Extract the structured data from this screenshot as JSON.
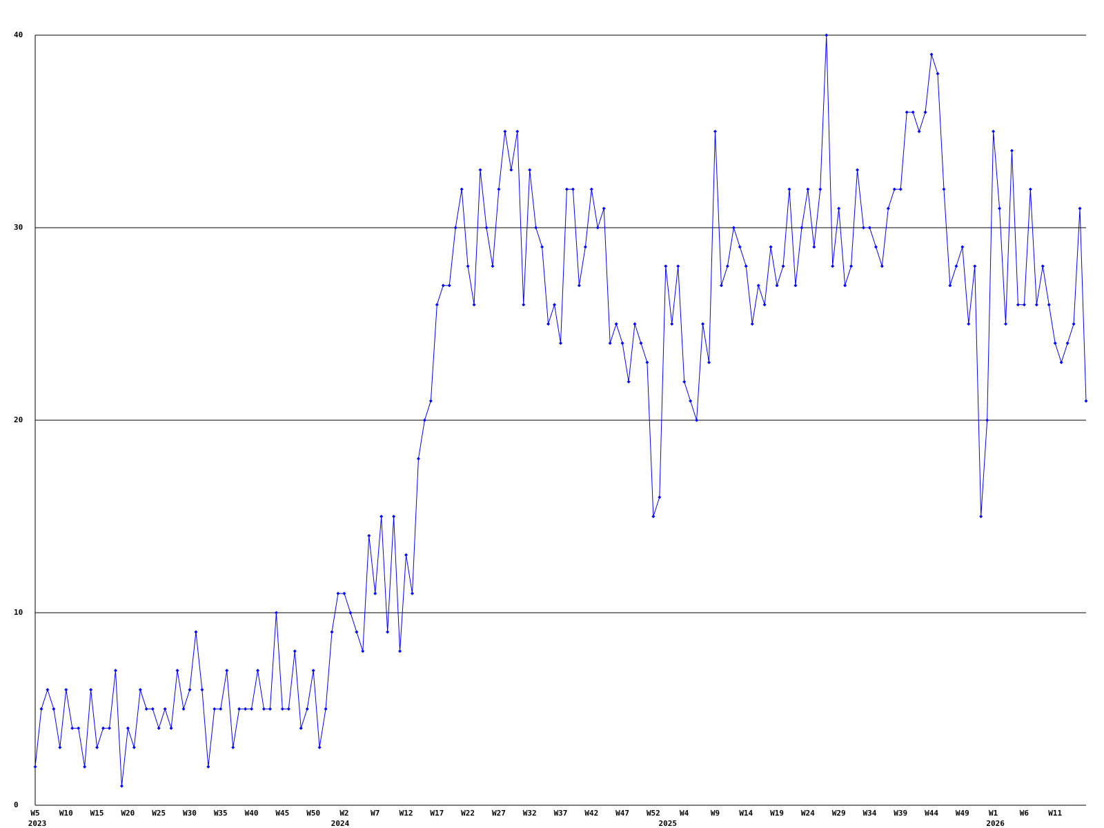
{
  "chart_data": {
    "type": "line",
    "color": "#0000ff",
    "grid": true,
    "ylim": [
      0,
      40
    ],
    "yticks": [
      0,
      10,
      20,
      30,
      40
    ],
    "categories": [
      "W5",
      null,
      null,
      null,
      null,
      "W10",
      null,
      null,
      null,
      null,
      "W15",
      null,
      null,
      null,
      null,
      "W20",
      null,
      null,
      null,
      null,
      "W25",
      null,
      null,
      null,
      null,
      "W30",
      null,
      null,
      null,
      null,
      "W35",
      null,
      null,
      null,
      null,
      "W40",
      null,
      null,
      null,
      null,
      "W45",
      null,
      null,
      null,
      null,
      "W50",
      null,
      null,
      null,
      null,
      "W2",
      null,
      null,
      null,
      null,
      "W7",
      null,
      null,
      null,
      null,
      "W12",
      null,
      null,
      null,
      null,
      "W17",
      null,
      null,
      null,
      null,
      "W22",
      null,
      null,
      null,
      null,
      "W27",
      null,
      null,
      null,
      null,
      "W32",
      null,
      null,
      null,
      null,
      "W37",
      null,
      null,
      null,
      null,
      "W42",
      null,
      null,
      null,
      null,
      "W47",
      null,
      null,
      null,
      null,
      "W52",
      null,
      null,
      null,
      null,
      "W4",
      null,
      null,
      null,
      null,
      "W9",
      null,
      null,
      null,
      null,
      "W14",
      null,
      null,
      null,
      null,
      "W19",
      null,
      null,
      null,
      null,
      "W24",
      null,
      null,
      null,
      null,
      "W29",
      null,
      null,
      null,
      null,
      "W34",
      null,
      null,
      null,
      null,
      "W39",
      null,
      null,
      null,
      null,
      "W44",
      null,
      null,
      null,
      null,
      "W49",
      null,
      null,
      null,
      null,
      "W1",
      null,
      null,
      null,
      null,
      "W6",
      null,
      null,
      null,
      null,
      "W11",
      null,
      null,
      null,
      null,
      null
    ],
    "x_years": [
      "2023",
      null,
      null,
      null,
      null,
      null,
      null,
      null,
      null,
      null,
      null,
      null,
      null,
      null,
      null,
      null,
      null,
      null,
      null,
      null,
      null,
      null,
      null,
      null,
      null,
      null,
      null,
      null,
      null,
      null,
      null,
      null,
      null,
      null,
      null,
      null,
      null,
      null,
      null,
      null,
      null,
      null,
      null,
      null,
      null,
      null,
      null,
      null,
      null,
      "2024",
      null,
      null,
      null,
      null,
      null,
      null,
      null,
      null,
      null,
      null,
      null,
      null,
      null,
      null,
      null,
      null,
      null,
      null,
      null,
      null,
      null,
      null,
      null,
      null,
      null,
      null,
      null,
      null,
      null,
      null,
      null,
      null,
      null,
      null,
      null,
      null,
      null,
      null,
      null,
      null,
      null,
      null,
      null,
      null,
      null,
      null,
      null,
      null,
      null,
      null,
      null,
      null,
      "2025",
      null,
      null,
      null,
      null,
      null,
      null,
      null,
      null,
      null,
      null,
      null,
      null,
      null,
      null,
      null,
      null,
      null,
      null,
      null,
      null,
      null,
      null,
      null,
      null,
      null,
      null,
      null,
      null,
      null,
      null,
      null,
      null,
      null,
      null,
      null,
      null,
      null,
      null,
      null,
      null,
      null,
      null,
      null,
      null,
      null,
      null,
      null,
      null,
      null,
      null,
      null,
      null,
      "2026",
      null,
      null,
      null,
      null,
      null,
      null,
      null,
      null,
      null,
      null,
      null,
      null,
      null,
      null,
      null
    ],
    "values": [
      2,
      5,
      6,
      5,
      3,
      6,
      4,
      4,
      2,
      6,
      3,
      4,
      4,
      7,
      1,
      4,
      3,
      6,
      5,
      5,
      4,
      5,
      4,
      7,
      5,
      6,
      9,
      6,
      2,
      5,
      5,
      7,
      3,
      5,
      5,
      5,
      7,
      5,
      5,
      10,
      5,
      5,
      8,
      4,
      5,
      7,
      3,
      5,
      9,
      11,
      11,
      10,
      9,
      8,
      14,
      11,
      15,
      9,
      15,
      8,
      13,
      11,
      18,
      20,
      21,
      26,
      27,
      27,
      30,
      32,
      28,
      26,
      33,
      30,
      28,
      32,
      35,
      33,
      35,
      26,
      33,
      30,
      29,
      25,
      26,
      24,
      32,
      32,
      27,
      29,
      32,
      30,
      31,
      24,
      25,
      24,
      22,
      25,
      24,
      23,
      15,
      16,
      28,
      25,
      28,
      22,
      21,
      20,
      25,
      23,
      35,
      27,
      28,
      30,
      29,
      28,
      25,
      27,
      26,
      29,
      27,
      28,
      32,
      27,
      30,
      32,
      29,
      32,
      40,
      28,
      31,
      27,
      28,
      33,
      30,
      30,
      29,
      28,
      31,
      32,
      32,
      36,
      36,
      35,
      36,
      39,
      38,
      32,
      27,
      28,
      29,
      25,
      28,
      15,
      20,
      35,
      31,
      25,
      34,
      26,
      26,
      32,
      26,
      28,
      26,
      24,
      23,
      24,
      25,
      31,
      21
    ]
  }
}
